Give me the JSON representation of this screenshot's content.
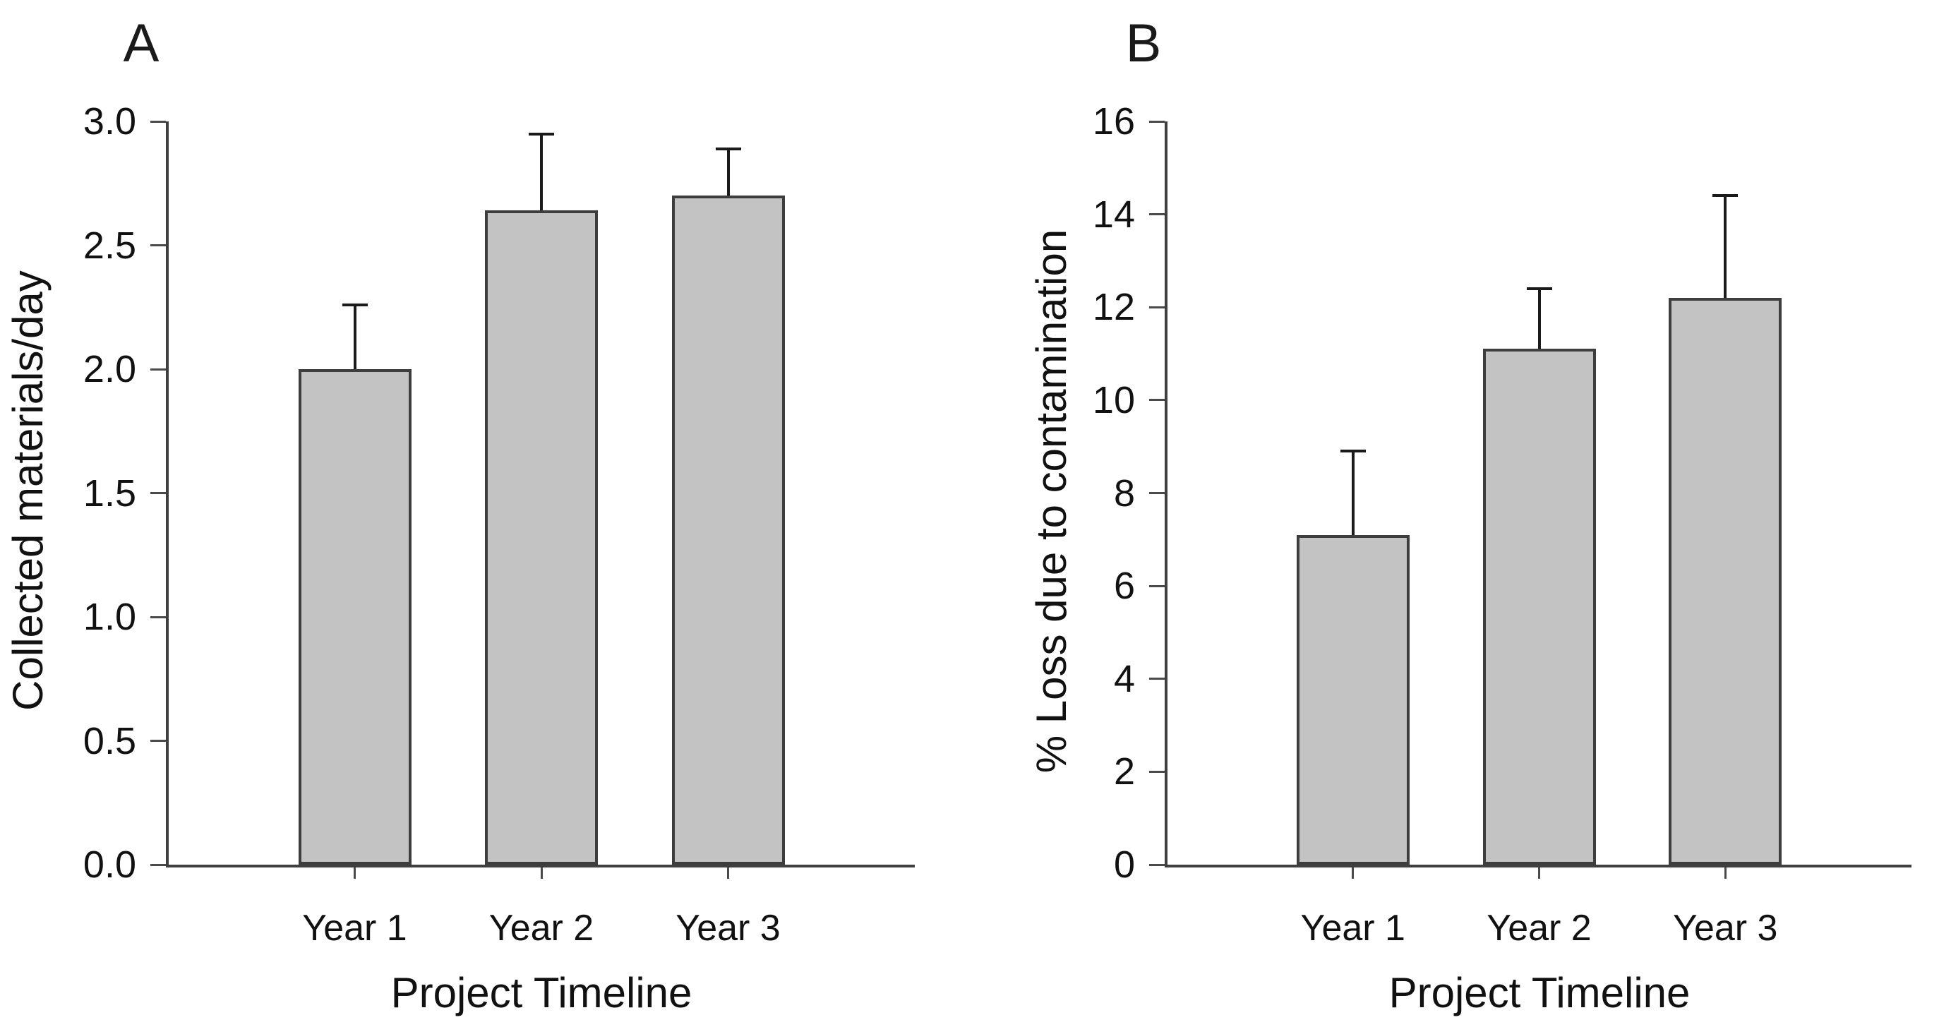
{
  "figure": {
    "background_color": "#ffffff",
    "text_color": "#000000"
  },
  "colors": {
    "bar_fill": "#c3c3c3",
    "bar_stroke": "#3d3d3d",
    "axis_line": "#3f3f3f",
    "error_bar": "#1a1a1a"
  },
  "chart_data": [
    {
      "type": "bar",
      "panel_label": "A",
      "title": "",
      "xlabel": "Project Timeline",
      "ylabel": "Collected materials/day",
      "categories": [
        "Year 1",
        "Year 2",
        "Year 3"
      ],
      "values": [
        2.0,
        2.64,
        2.7
      ],
      "errors_plus": [
        0.26,
        0.31,
        0.19
      ],
      "ylim": [
        0,
        3.0
      ],
      "yticks": [
        "0.0",
        "0.5",
        "1.0",
        "1.5",
        "2.0",
        "2.5",
        "3.0"
      ],
      "ytick_values": [
        0,
        0.5,
        1.0,
        1.5,
        2.0,
        2.5,
        3.0
      ],
      "grid": false,
      "legend": null
    },
    {
      "type": "bar",
      "panel_label": "B",
      "title": "",
      "xlabel": "Project Timeline",
      "ylabel": "% Loss due to contamination",
      "categories": [
        "Year 1",
        "Year 2",
        "Year 3"
      ],
      "values": [
        7.1,
        11.1,
        12.2
      ],
      "errors_plus": [
        1.8,
        1.3,
        2.2
      ],
      "ylim": [
        0,
        16
      ],
      "yticks": [
        "0",
        "2",
        "4",
        "6",
        "8",
        "10",
        "12",
        "14",
        "16"
      ],
      "ytick_values": [
        0,
        2,
        4,
        6,
        8,
        10,
        12,
        14,
        16
      ],
      "grid": false,
      "legend": null
    }
  ]
}
